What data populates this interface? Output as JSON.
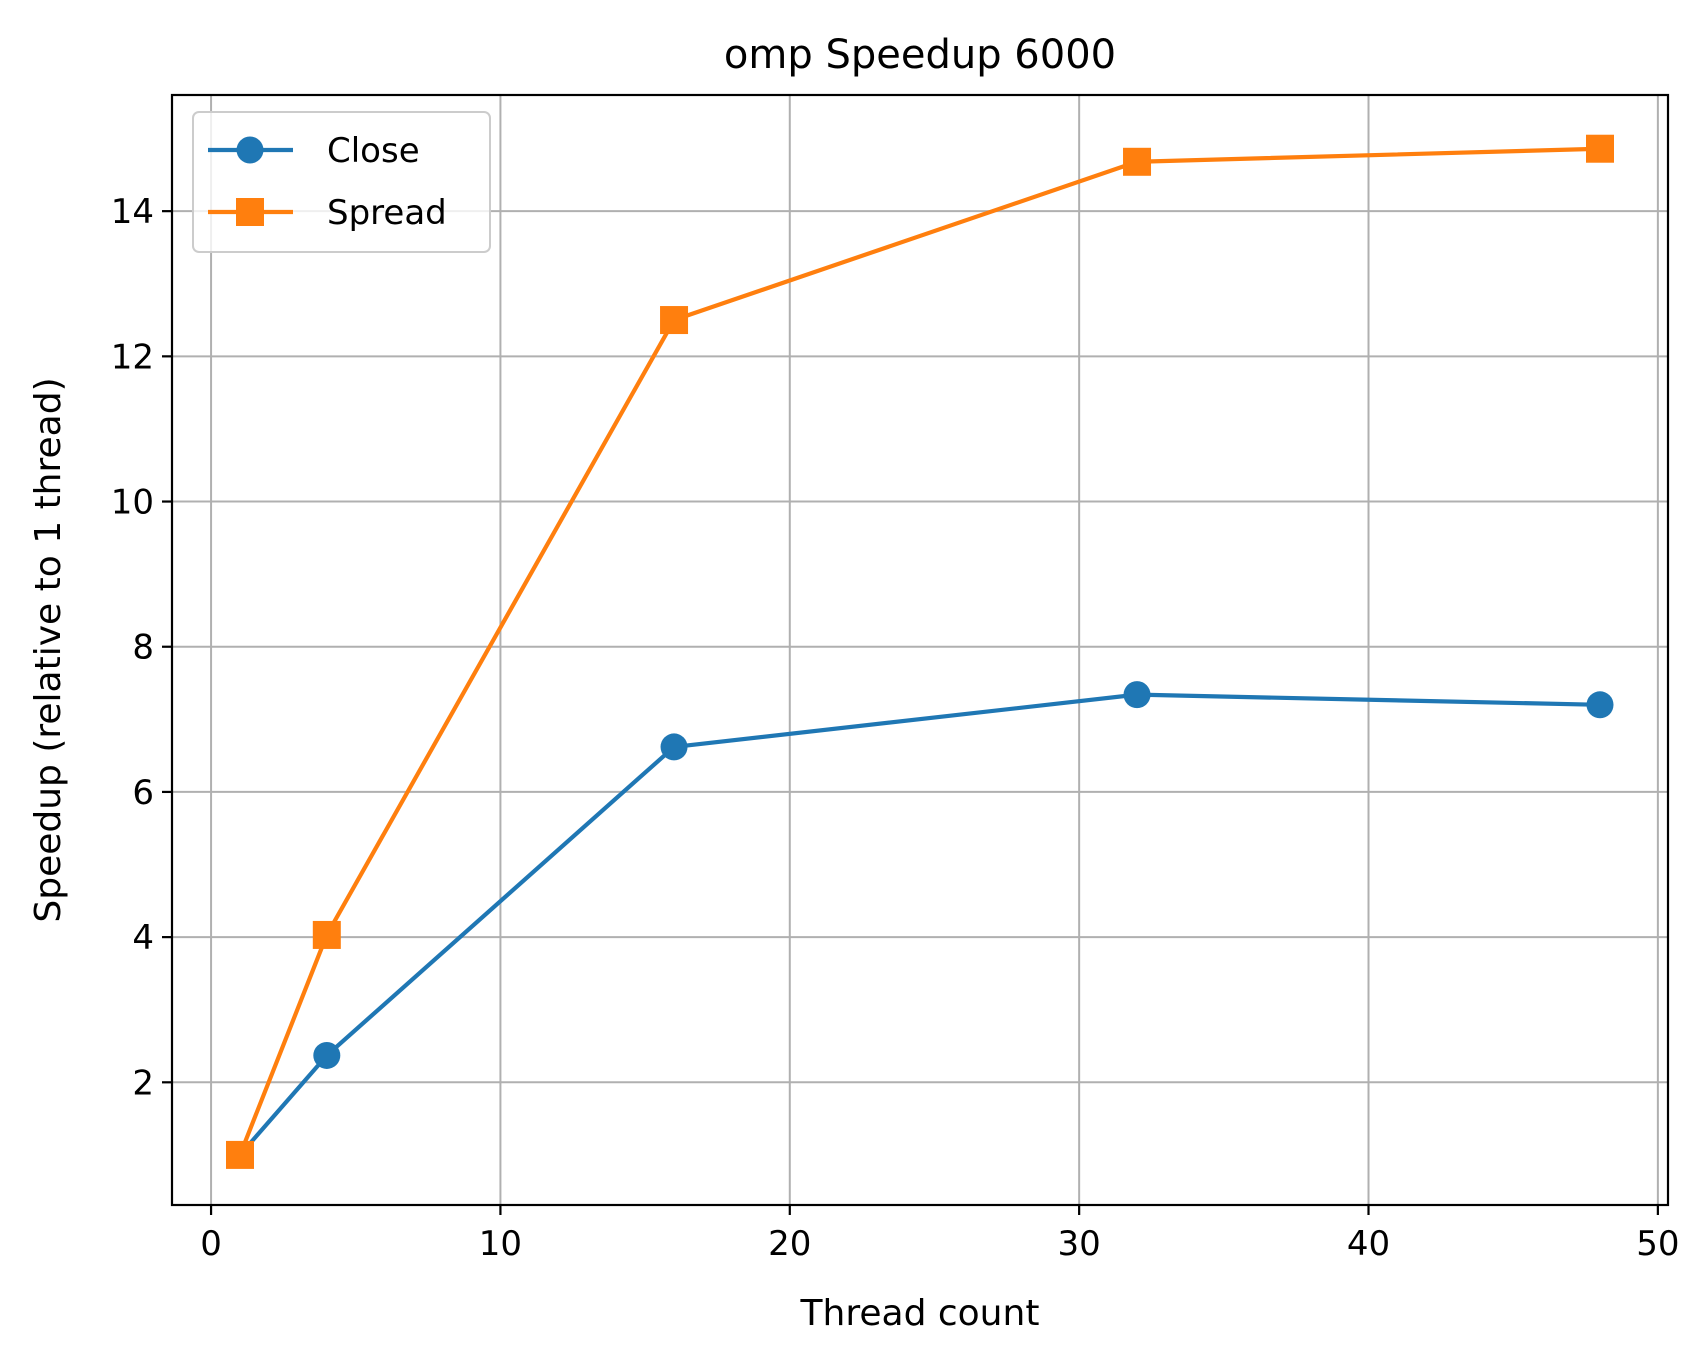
{
  "chart_data": {
    "type": "line",
    "title": "omp Speedup 6000",
    "xlabel": "Thread count",
    "ylabel": "Speedup (relative to 1 thread)",
    "x": [
      1,
      4,
      16,
      32,
      48
    ],
    "xlim": [
      -1.35,
      50.35
    ],
    "ylim": [
      0.31,
      15.6
    ],
    "xticks": [
      0,
      10,
      20,
      30,
      40,
      50
    ],
    "yticks": [
      2,
      4,
      6,
      8,
      10,
      12,
      14
    ],
    "grid": true,
    "legend_position": "top-left",
    "series": [
      {
        "name": "Close",
        "marker": "circle",
        "color": "#1f77b4",
        "values": [
          1.0,
          2.37,
          6.62,
          7.34,
          7.2
        ]
      },
      {
        "name": "Spread",
        "marker": "square",
        "color": "#ff7f0e",
        "values": [
          1.0,
          4.03,
          12.5,
          14.68,
          14.86
        ]
      }
    ]
  }
}
